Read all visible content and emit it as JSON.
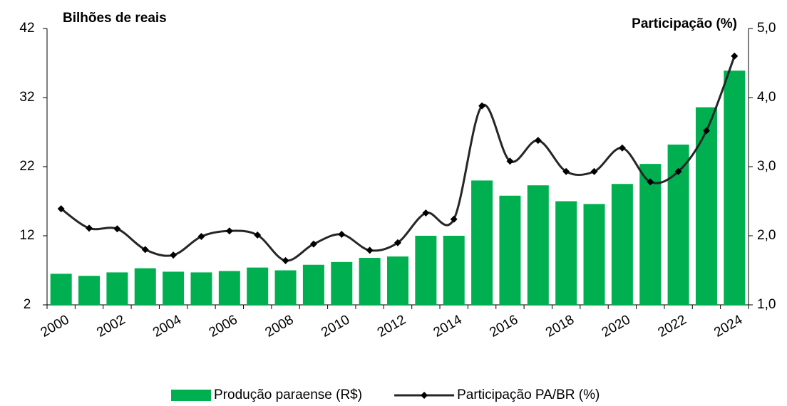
{
  "chart_data": {
    "type": "bar_line",
    "y_label": "Bilhões de reais",
    "y2_label": "Participação (%)",
    "categories": [
      "2000",
      null,
      "2002",
      null,
      "2004",
      null,
      "2006",
      null,
      "2008",
      null,
      "2010",
      null,
      "2012",
      null,
      "2014",
      null,
      "2016",
      null,
      "2018",
      null,
      "2020",
      null,
      "2022",
      null,
      "2024"
    ],
    "series": [
      {
        "name": "Produção paraense (R$)",
        "type": "bar",
        "color": "#00b050",
        "values": [
          6.5,
          6.2,
          6.7,
          7.3,
          6.8,
          6.7,
          6.9,
          7.4,
          7.0,
          7.8,
          8.2,
          8.8,
          9.0,
          12.0,
          12.0,
          20.0,
          17.8,
          19.3,
          17.0,
          16.6,
          19.5,
          22.4,
          25.2,
          30.6,
          35.9
        ]
      },
      {
        "name": "Participação PA/BR (%)",
        "type": "line",
        "axis": "y2",
        "color": "#262626",
        "values": [
          2.39,
          2.11,
          2.1,
          1.8,
          1.72,
          1.99,
          2.07,
          2.01,
          1.64,
          1.88,
          2.02,
          1.79,
          1.9,
          2.33,
          2.24,
          3.88,
          3.08,
          3.38,
          2.93,
          2.93,
          3.27,
          2.78,
          2.93,
          3.52,
          4.6
        ]
      }
    ],
    "ylim": [
      2,
      42
    ],
    "yticks": [
      2,
      12,
      22,
      32,
      42
    ],
    "y2lim": [
      1,
      5
    ],
    "y2ticks": [
      {
        "value": 1,
        "label": "1,0"
      },
      {
        "value": 2,
        "label": "2,0"
      },
      {
        "value": 3,
        "label": "3,0"
      },
      {
        "value": 4,
        "label": "4,0"
      },
      {
        "value": 5,
        "label": "5,0"
      }
    ],
    "legend": "bottom"
  }
}
